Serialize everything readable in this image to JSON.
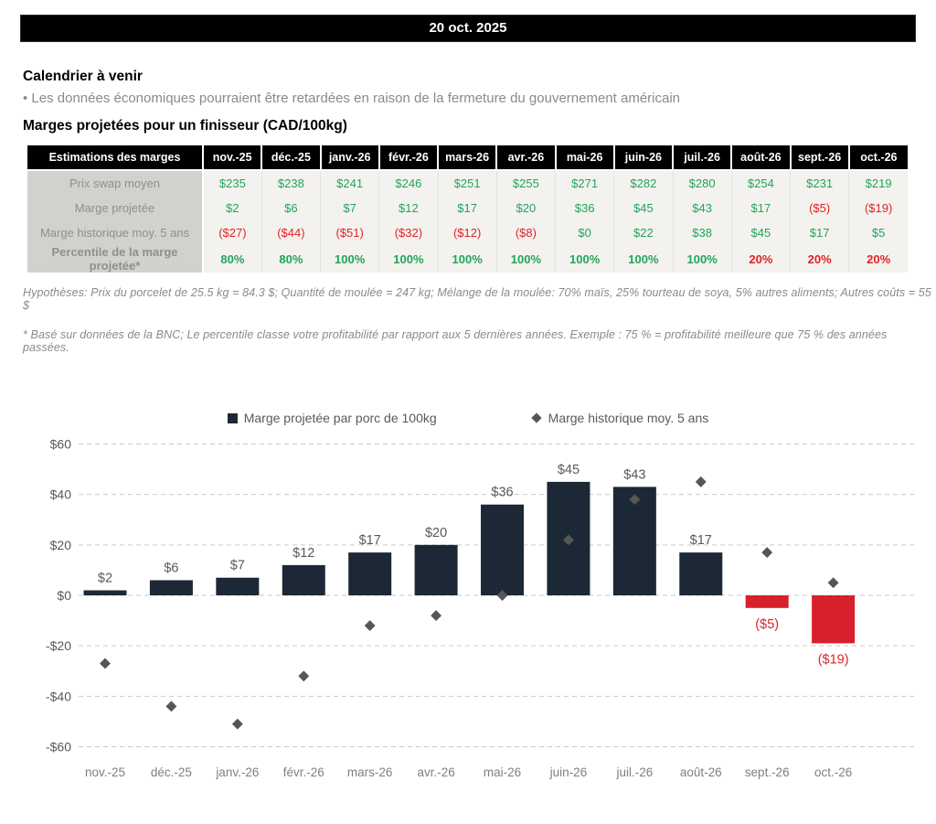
{
  "header": {
    "date": "20 oct. 2025"
  },
  "calendar": {
    "title": "Calendrier à venir",
    "bullet": "• Les données économiques pourraient être retardées en raison de la fermeture du gouvernement américain"
  },
  "table_title": "Marges projetées pour un finisseur (CAD/100kg)",
  "table": {
    "corner_label": "Estimations des marges",
    "columns": [
      "nov.-25",
      "déc.-25",
      "janv.-26",
      "févr.-26",
      "mars-26",
      "avr.-26",
      "mai-26",
      "juin-26",
      "juil.-26",
      "août-26",
      "sept.-26",
      "oct.-26"
    ],
    "rows": [
      {
        "label": "Prix swap moyen",
        "values": [
          "$235",
          "$238",
          "$241",
          "$246",
          "$251",
          "$255",
          "$271",
          "$282",
          "$280",
          "$254",
          "$231",
          "$219"
        ],
        "statuses": [
          "pos",
          "pos",
          "pos",
          "pos",
          "pos",
          "pos",
          "pos",
          "pos",
          "pos",
          "pos",
          "pos",
          "pos"
        ],
        "bold": false
      },
      {
        "label": "Marge projetée",
        "values": [
          "$2",
          "$6",
          "$7",
          "$12",
          "$17",
          "$20",
          "$36",
          "$45",
          "$43",
          "$17",
          "($5)",
          "($19)"
        ],
        "statuses": [
          "pos",
          "pos",
          "pos",
          "pos",
          "pos",
          "pos",
          "pos",
          "pos",
          "pos",
          "pos",
          "neg",
          "neg"
        ],
        "bold": false
      },
      {
        "label": "Marge historique moy. 5 ans",
        "values": [
          "($27)",
          "($44)",
          "($51)",
          "($32)",
          "($12)",
          "($8)",
          "$0",
          "$22",
          "$38",
          "$45",
          "$17",
          "$5"
        ],
        "statuses": [
          "neg",
          "neg",
          "neg",
          "neg",
          "neg",
          "neg",
          "pos",
          "pos",
          "pos",
          "pos",
          "pos",
          "pos"
        ],
        "bold": false
      },
      {
        "label": "Percentile de la marge projetée*",
        "values": [
          "80%",
          "80%",
          "100%",
          "100%",
          "100%",
          "100%",
          "100%",
          "100%",
          "100%",
          "20%",
          "20%",
          "20%"
        ],
        "statuses": [
          "pos",
          "pos",
          "pos",
          "pos",
          "pos",
          "pos",
          "pos",
          "pos",
          "pos",
          "neg",
          "neg",
          "neg"
        ],
        "bold": true
      }
    ]
  },
  "footnotes": [
    "Hypothèses: Prix du porcelet de 25.5 kg = 84.3 $; Quantité de moulée = 247 kg; Mélange de la moulée: 70% maïs, 25% tourteau de soya, 5% autres aliments; Autres coûts = 55 $",
    "* Basé sur données de la BNC; Le percentile classe votre profitabilité par rapport aux 5 dernières années. Exemple : 75 % = profitabilité meilleure que 75 % des années passées."
  ],
  "colors": {
    "positive_text": "#23a45b",
    "negative_text": "#e02227",
    "bar_dark": "#1c2836",
    "bar_red": "#d7202c",
    "marker_gray": "#565656",
    "grid_gray": "#c9c9c9"
  },
  "chart_data": {
    "type": "bar",
    "categories": [
      "nov.-25",
      "déc.-25",
      "janv.-26",
      "févr.-26",
      "mars-26",
      "avr.-26",
      "mai-26",
      "juin-26",
      "juil.-26",
      "août-26",
      "sept.-26",
      "oct.-26"
    ],
    "series": [
      {
        "name": "Marge projetée par porc de 100kg",
        "type": "bar",
        "values": [
          2,
          6,
          7,
          12,
          17,
          20,
          36,
          45,
          43,
          17,
          -5,
          -19
        ]
      },
      {
        "name": "Marge historique moy. 5 ans",
        "type": "scatter-diamond",
        "values": [
          -27,
          -44,
          -51,
          -32,
          -12,
          -8,
          0,
          22,
          38,
          45,
          17,
          5
        ]
      }
    ],
    "title": "",
    "xlabel": "",
    "ylabel": "",
    "ylim": [
      -60,
      60
    ],
    "yticks": [
      60,
      40,
      20,
      0,
      -20,
      -40,
      -60
    ],
    "grid": "dashed-horizontal",
    "legend_position": "top-center",
    "value_label_format": "$ with parentheses for negatives"
  }
}
